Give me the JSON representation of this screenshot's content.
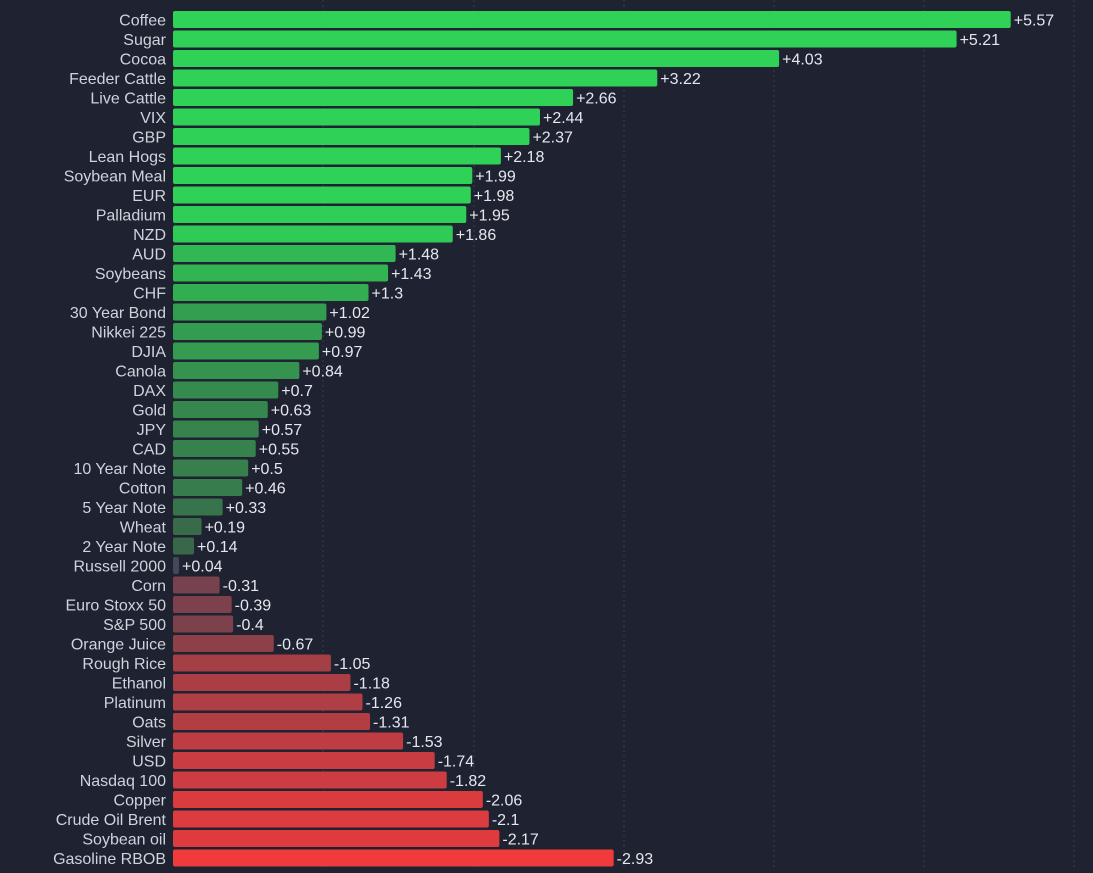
{
  "chart_data": {
    "type": "bar",
    "orientation": "horizontal",
    "title": "",
    "xlabel": "",
    "ylabel": "",
    "grid": true,
    "categories": [
      "Coffee",
      "Sugar",
      "Cocoa",
      "Feeder Cattle",
      "Live Cattle",
      "VIX",
      "GBP",
      "Lean Hogs",
      "Soybean Meal",
      "EUR",
      "Palladium",
      "NZD",
      "AUD",
      "Soybeans",
      "CHF",
      "30 Year Bond",
      "Nikkei 225",
      "DJIA",
      "Canola",
      "DAX",
      "Gold",
      "JPY",
      "CAD",
      "10 Year Note",
      "Cotton",
      "5 Year Note",
      "Wheat",
      "2 Year Note",
      "Russell 2000",
      "Corn",
      "Euro Stoxx 50",
      "S&P 500",
      "Orange Juice",
      "Rough Rice",
      "Ethanol",
      "Platinum",
      "Oats",
      "Silver",
      "USD",
      "Nasdaq 100",
      "Copper",
      "Crude Oil Brent",
      "Soybean oil",
      "Gasoline RBOB"
    ],
    "values": [
      5.57,
      5.21,
      4.03,
      3.22,
      2.66,
      2.44,
      2.37,
      2.18,
      1.99,
      1.98,
      1.95,
      1.86,
      1.48,
      1.43,
      1.3,
      1.02,
      0.99,
      0.97,
      0.84,
      0.7,
      0.63,
      0.57,
      0.55,
      0.5,
      0.46,
      0.33,
      0.19,
      0.14,
      0.04,
      -0.31,
      -0.39,
      -0.4,
      -0.67,
      -1.05,
      -1.18,
      -1.26,
      -1.31,
      -1.53,
      -1.74,
      -1.82,
      -2.06,
      -2.1,
      -2.17,
      -2.93
    ],
    "value_labels": [
      "+5.57",
      "+5.21",
      "+4.03",
      "+3.22",
      "+2.66",
      "+2.44",
      "+2.37",
      "+2.18",
      "+1.99",
      "+1.98",
      "+1.95",
      "+1.86",
      "+1.48",
      "+1.43",
      "+1.3",
      "+1.02",
      "+0.99",
      "+0.97",
      "+0.84",
      "+0.7",
      "+0.63",
      "+0.57",
      "+0.55",
      "+0.5",
      "+0.46",
      "+0.33",
      "+0.19",
      "+0.14",
      "+0.04",
      "-0.31",
      "-0.39",
      "-0.4",
      "-0.67",
      "-1.05",
      "-1.18",
      "-1.26",
      "-1.31",
      "-1.53",
      "-1.74",
      "-1.82",
      "-2.06",
      "-2.1",
      "-2.17",
      "-2.93"
    ],
    "colors": {
      "background": "#1f2230",
      "grid": "#3a3e4d",
      "text": "#cfd3dc",
      "positive_strong": "#2fd257",
      "positive_weak": "#3a5a48",
      "neutral": "#44485a",
      "negative_weak": "#5e4350",
      "negative_strong": "#f03a3c"
    }
  }
}
